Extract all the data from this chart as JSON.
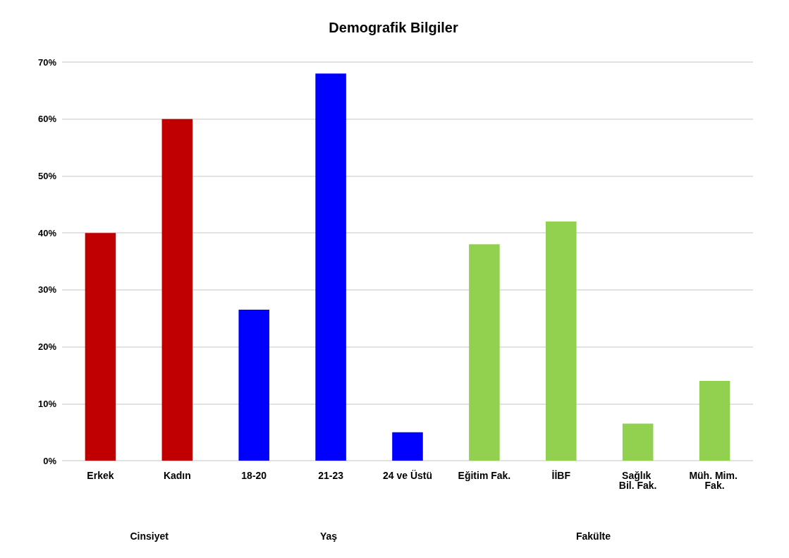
{
  "chart_data": {
    "type": "bar",
    "title": "Demografik Bilgiler",
    "categories": [
      "Erkek",
      "Kadın",
      "18-20",
      "21-23",
      "24 ve Üstü",
      "Eğitim Fak.",
      "İİBF",
      "Sağlık Bil. Fak.",
      "Müh. Mim. Fak."
    ],
    "values": [
      40,
      60,
      26.5,
      68,
      5,
      38,
      42,
      6.5,
      14
    ],
    "colors": [
      "#c00000",
      "#c00000",
      "#0000ff",
      "#0000ff",
      "#0000ff",
      "#92d050",
      "#92d050",
      "#92d050",
      "#92d050"
    ],
    "ylim": [
      0,
      70
    ],
    "yticks": [
      {
        "value": 0,
        "label": "0%"
      },
      {
        "value": 10,
        "label": "10%"
      },
      {
        "value": 20,
        "label": "20%"
      },
      {
        "value": 30,
        "label": "30%"
      },
      {
        "value": 40,
        "label": "40%"
      },
      {
        "value": 50,
        "label": "50%"
      },
      {
        "value": 60,
        "label": "60%"
      },
      {
        "value": 70,
        "label": "70%"
      }
    ],
    "grid": "y",
    "annotations": [
      "Cinsiyet",
      "Yaş",
      "Fakülte"
    ]
  }
}
